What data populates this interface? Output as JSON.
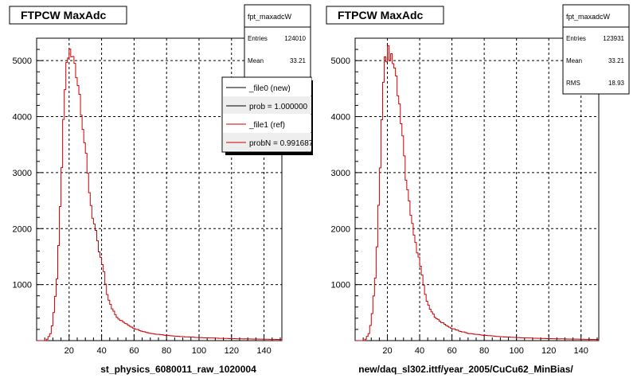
{
  "panels": [
    {
      "title": "FTPCW MaxAdc",
      "stats": {
        "name": "fpt_maxadcW",
        "rows": [
          {
            "label": "Entries",
            "value": "124010"
          },
          {
            "label": "Mean",
            "value": "33.21"
          }
        ]
      },
      "legend": [
        {
          "text": "_file0 (new)",
          "color": "#000000"
        },
        {
          "text": "prob = 1.000000",
          "color": "#000000"
        },
        {
          "text": "_file1 (ref)",
          "color": "#cc0000"
        },
        {
          "text": "probN = 0.991687",
          "color": "#cc0000"
        }
      ],
      "xlabel": "st_physics_6080011_raw_1020004"
    },
    {
      "title": "FTPCW MaxAdc",
      "stats": {
        "name": "fpt_maxadcW",
        "rows": [
          {
            "label": "Entries",
            "value": "123931"
          },
          {
            "label": "Mean",
            "value": "33.21"
          },
          {
            "label": "RMS",
            "value": "18.93"
          }
        ]
      },
      "legend": [],
      "xlabel": "new/daq_sl302.ittf/year_2005/CuCu62_MinBias/"
    }
  ],
  "chart_data": [
    {
      "type": "line",
      "title": "FTPCW MaxAdc",
      "xlabel": "st_physics_6080011_raw_1020004",
      "ylabel": "",
      "xlim": [
        0,
        151
      ],
      "ylim": [
        0,
        5400
      ],
      "xticks": [
        20,
        40,
        60,
        80,
        100,
        120,
        140
      ],
      "yticks": [
        1000,
        2000,
        3000,
        4000,
        5000
      ],
      "grid": true,
      "legend_position": "top-right",
      "series": [
        {
          "name": "_file0 (new)",
          "color": "#000000"
        },
        {
          "name": "_file1 (ref)",
          "color": "#cc0000"
        }
      ],
      "curve": {
        "x": [
          0,
          6,
          9,
          11,
          13,
          14,
          15,
          16,
          17,
          18,
          19,
          20,
          21,
          22,
          23,
          24,
          25,
          26,
          27,
          28,
          29,
          30,
          32,
          34,
          36,
          38,
          40,
          41,
          42,
          44,
          46,
          50,
          55,
          60,
          65,
          70,
          80,
          90,
          100,
          110,
          120,
          130,
          140,
          151
        ],
        "y": [
          0,
          0,
          150,
          600,
          1300,
          2000,
          2700,
          3500,
          4200,
          4800,
          5050,
          5150,
          5100,
          5000,
          5050,
          4900,
          4700,
          4500,
          4300,
          4000,
          3700,
          3400,
          2800,
          2300,
          2000,
          1650,
          1400,
          1300,
          1100,
          750,
          600,
          400,
          300,
          220,
          170,
          130,
          95,
          70,
          55,
          45,
          35,
          30,
          25,
          20
        ]
      }
    },
    {
      "type": "line",
      "title": "FTPCW MaxAdc",
      "xlabel": "new/daq_sl302.ittf/year_2005/CuCu62_MinBias/",
      "ylabel": "",
      "xlim": [
        0,
        151
      ],
      "ylim": [
        0,
        5400
      ],
      "xticks": [
        20,
        40,
        60,
        80,
        100,
        120,
        140
      ],
      "yticks": [
        1000,
        2000,
        3000,
        4000,
        5000
      ],
      "grid": true,
      "series": [
        {
          "name": "fpt_maxadcW",
          "color": "#cc0000"
        }
      ],
      "curve": {
        "x": [
          0,
          6,
          9,
          11,
          13,
          14,
          15,
          16,
          17,
          18,
          19,
          20,
          21,
          22,
          23,
          24,
          25,
          26,
          27,
          28,
          29,
          30,
          32,
          34,
          36,
          38,
          40,
          41,
          42,
          44,
          46,
          50,
          55,
          60,
          65,
          70,
          80,
          90,
          100,
          110,
          120,
          130,
          140,
          151
        ],
        "y": [
          0,
          0,
          150,
          600,
          1300,
          2000,
          2700,
          3500,
          4200,
          4800,
          5050,
          5150,
          5100,
          5000,
          5050,
          4900,
          4700,
          4500,
          4300,
          4000,
          3700,
          3400,
          2800,
          2300,
          2000,
          1650,
          1400,
          1300,
          1100,
          750,
          600,
          400,
          300,
          220,
          170,
          130,
          95,
          70,
          55,
          45,
          35,
          30,
          25,
          20
        ]
      }
    }
  ]
}
